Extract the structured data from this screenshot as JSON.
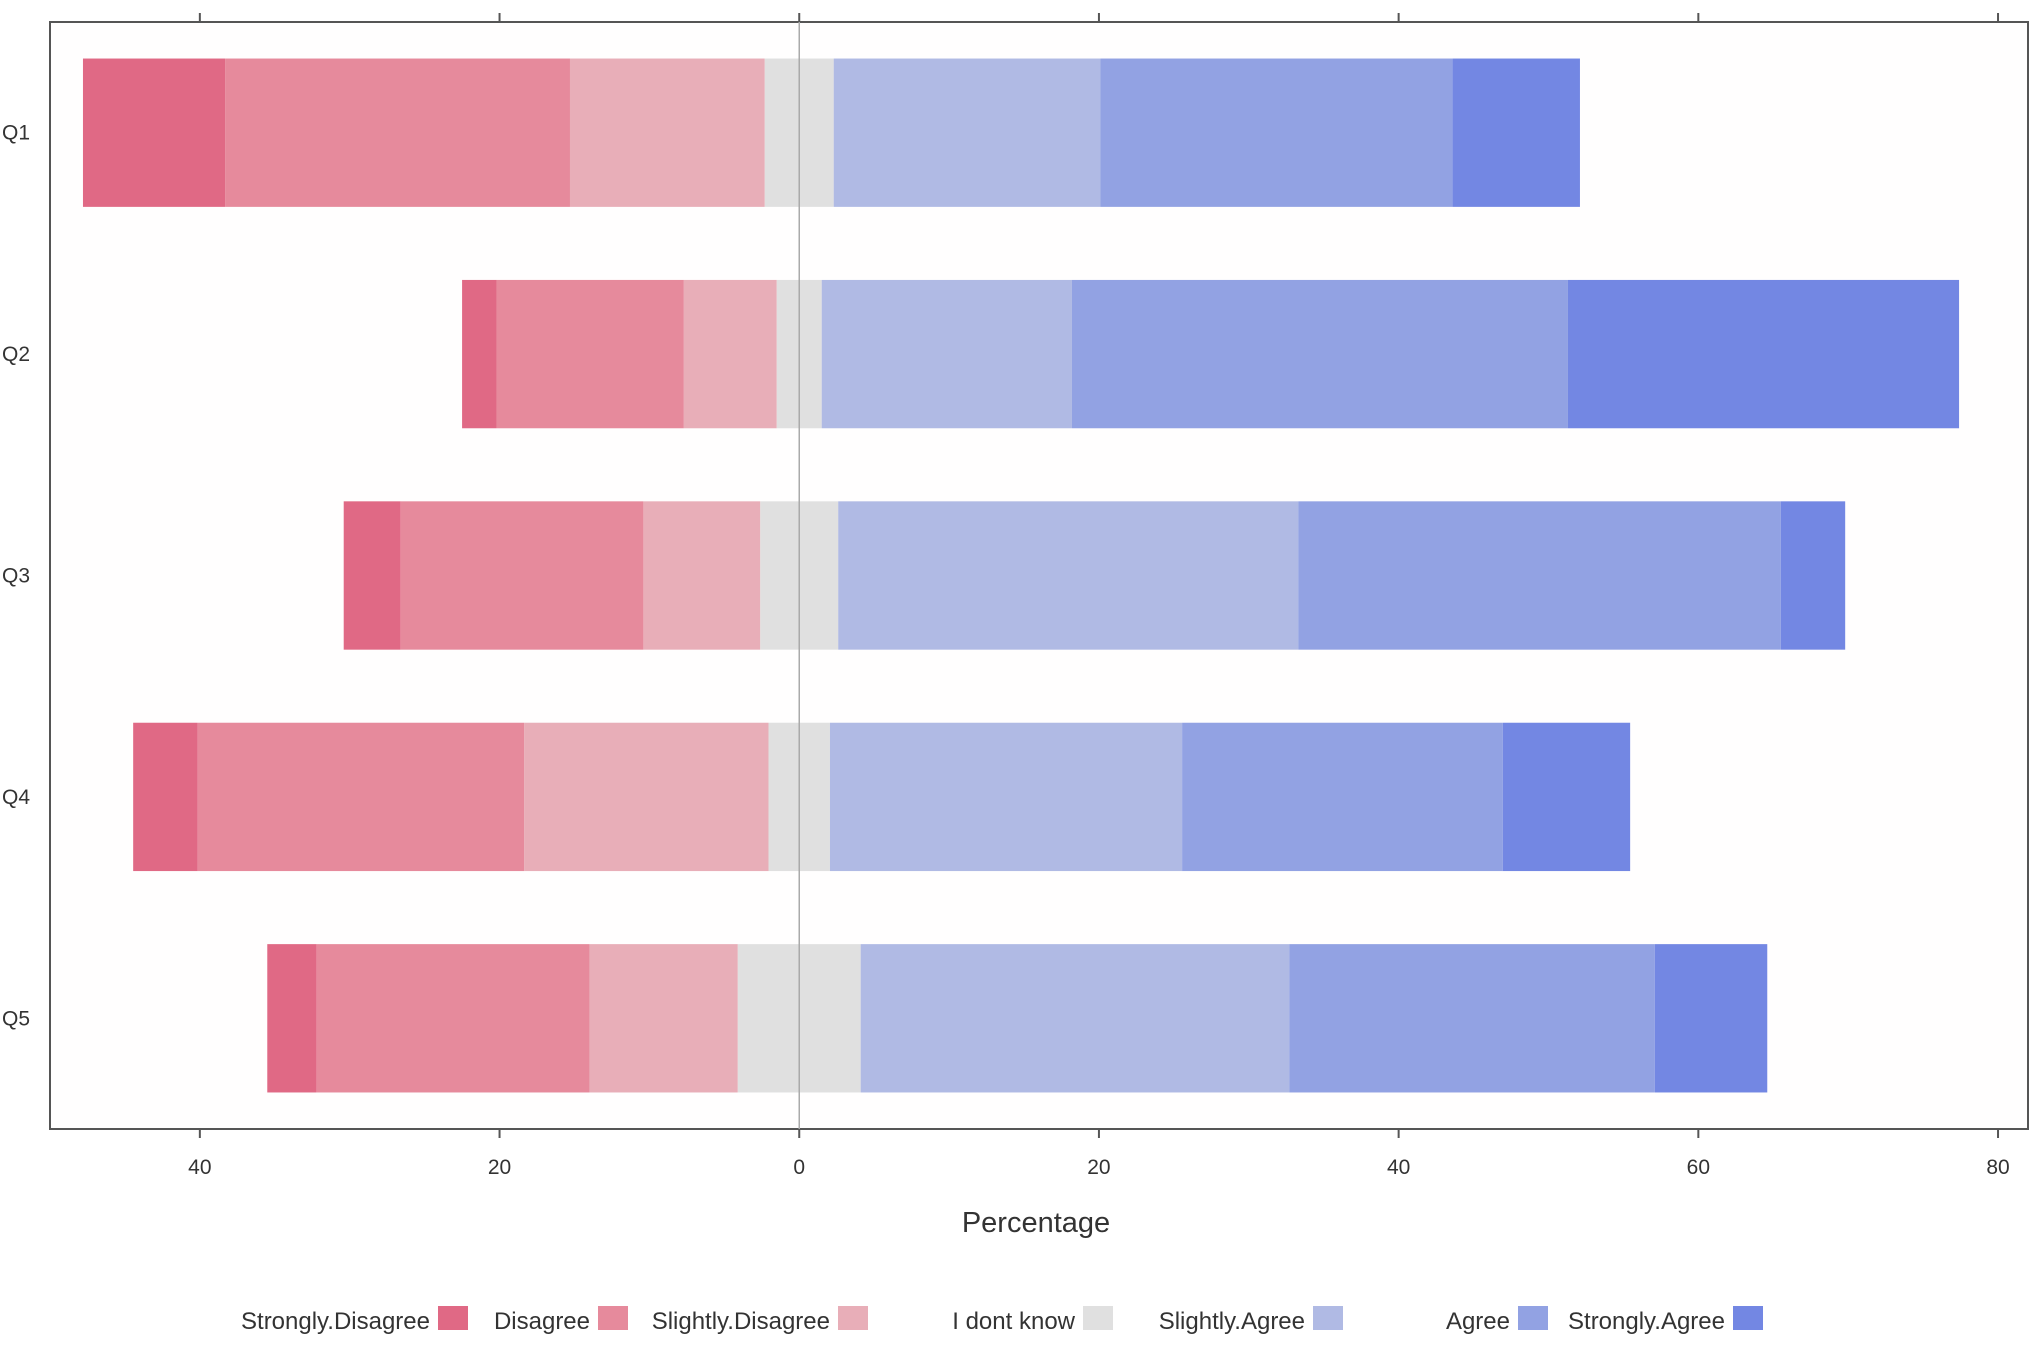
{
  "chart_data": {
    "type": "bar",
    "subtype": "diverging-stacked-horizontal",
    "xlabel": "Percentage",
    "ylabel": "",
    "xlim": [
      -50,
      82
    ],
    "x_ticks": [
      -40,
      -20,
      0,
      20,
      40,
      60,
      80
    ],
    "x_tick_labels": [
      "40",
      "20",
      "0",
      "20",
      "40",
      "60",
      "80"
    ],
    "categories": [
      "Q1",
      "Q2",
      "Q3",
      "Q4",
      "Q5"
    ],
    "series": [
      {
        "name": "Strongly.Disagree",
        "color": "#e06985",
        "values": [
          9.5,
          2.3,
          3.8,
          4.3,
          3.3
        ]
      },
      {
        "name": "Disagree",
        "color": "#e68a9c",
        "values": [
          23.0,
          12.5,
          16.2,
          21.8,
          18.2
        ]
      },
      {
        "name": "Slightly.Disagree",
        "color": "#e8aeb8",
        "values": [
          13.0,
          6.2,
          7.8,
          16.3,
          9.9
        ]
      },
      {
        "name": "I dont know",
        "color": "#e0e0e0",
        "values": [
          4.6,
          3.0,
          5.2,
          4.1,
          8.2
        ]
      },
      {
        "name": "Slightly.Agree",
        "color": "#b0bae4",
        "values": [
          17.8,
          16.7,
          30.7,
          23.5,
          28.6
        ]
      },
      {
        "name": "Agree",
        "color": "#92a2e3",
        "values": [
          23.5,
          33.1,
          32.2,
          21.4,
          24.4
        ]
      },
      {
        "name": "Strongly.Agree",
        "color": "#7387e3",
        "values": [
          8.5,
          26.1,
          4.3,
          8.5,
          7.5
        ]
      }
    ],
    "neutral_series": "I dont know",
    "grid": false,
    "legend_position": "bottom"
  }
}
